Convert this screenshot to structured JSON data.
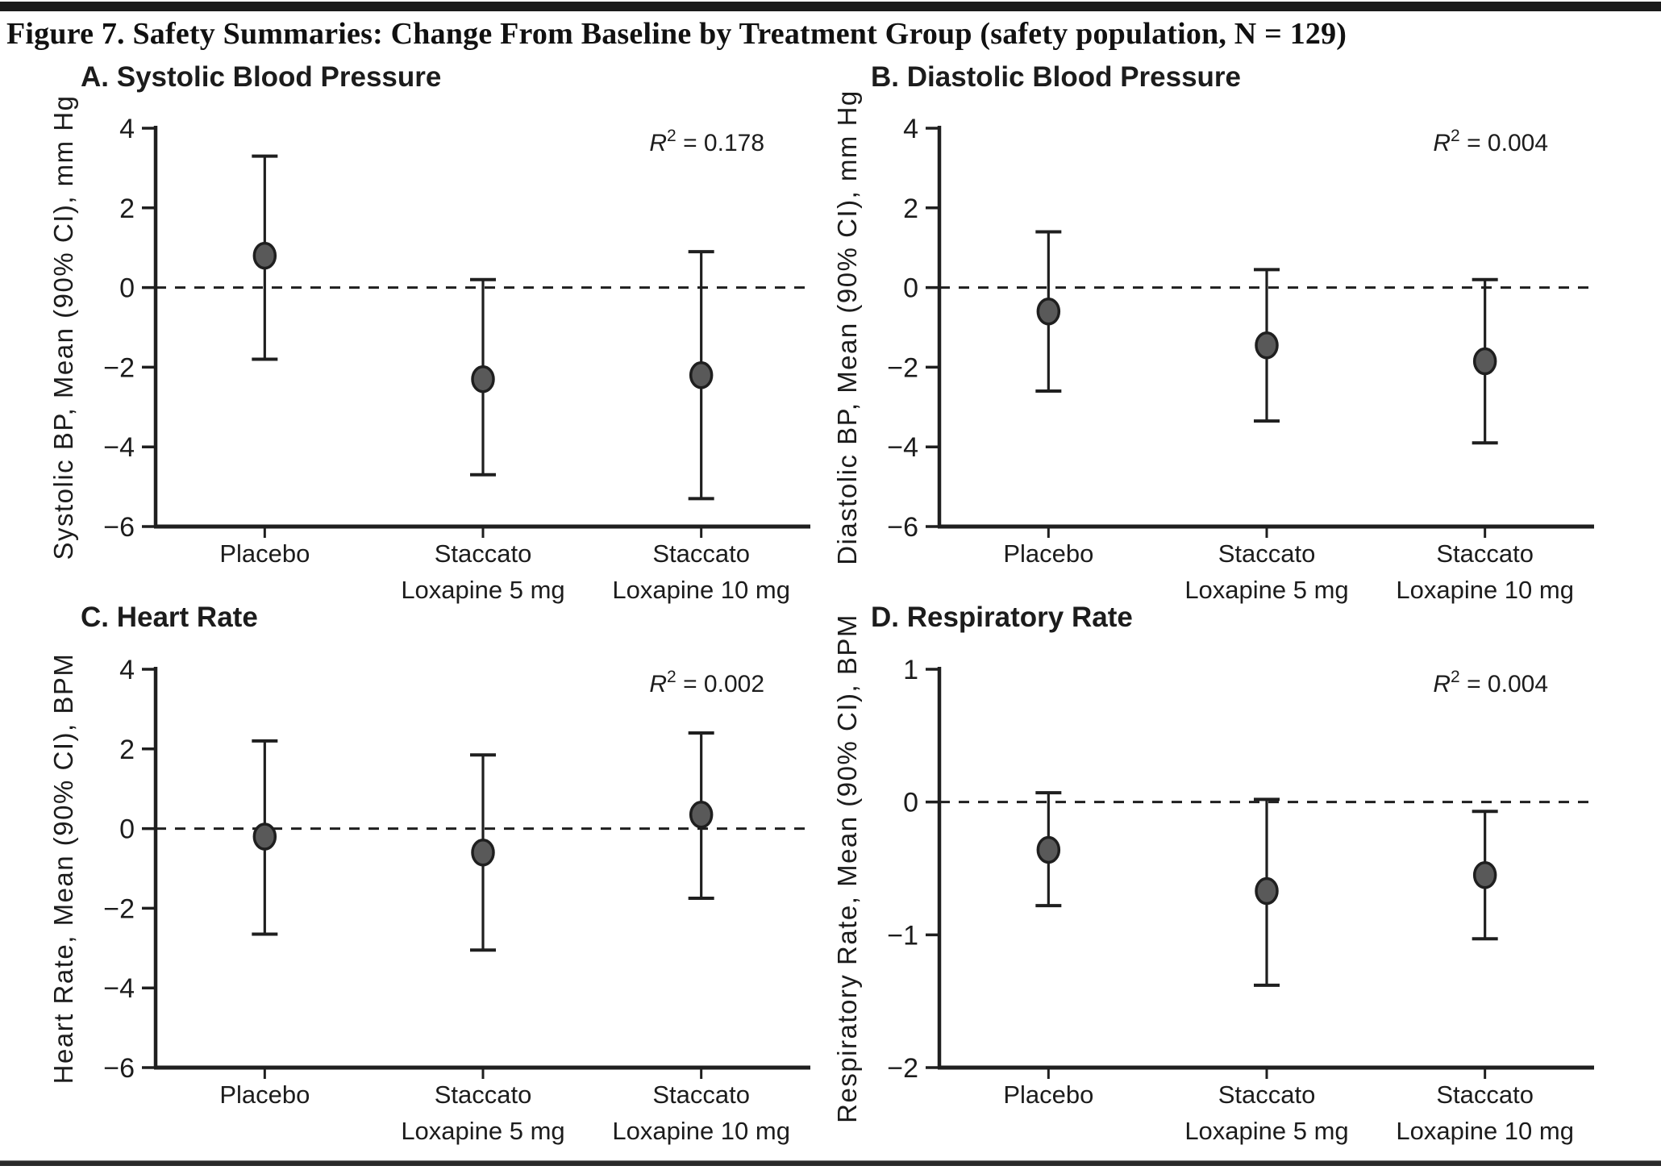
{
  "page": {
    "title": "Figure 7. Safety Summaries: Change From Baseline by Treatment Group (safety population, N = 129)"
  },
  "colors": {
    "top_bar": "#1a1a1a",
    "bottom_rule": "#2a2a2a",
    "marker_fill": "#595959",
    "marker_stroke": "#1f1f1f",
    "axis_line": "#1f1f1f",
    "text": "#1c1c1c"
  },
  "chart_data": [
    {
      "type": "scatter",
      "panel_label": "A. Systolic Blood Pressure",
      "ylabel": "Systolic BP, Mean (90% CI), mm Hg",
      "r_squared_label": "R",
      "r_squared_exp": "2",
      "r_squared_value": " = 0.178",
      "ylim": [
        -6,
        4
      ],
      "yticks": [
        4,
        2,
        0,
        -2,
        -4,
        -6
      ],
      "zero_line": true,
      "legend_position": "none",
      "grid": false,
      "categories": [
        "Placebo",
        "Staccato Loxapine 5 mg",
        "Staccato Loxapine 10 mg"
      ],
      "category_lines": [
        [
          "Placebo"
        ],
        [
          "Staccato",
          "Loxapine 5 mg"
        ],
        [
          "Staccato",
          "Loxapine 10 mg"
        ]
      ],
      "points": [
        {
          "group": "Placebo",
          "mean": 0.8,
          "ci_low": -1.8,
          "ci_high": 3.3
        },
        {
          "group": "Staccato Loxapine 5 mg",
          "mean": -2.3,
          "ci_low": -4.7,
          "ci_high": 0.2
        },
        {
          "group": "Staccato Loxapine 10 mg",
          "mean": -2.2,
          "ci_low": -5.3,
          "ci_high": 0.9
        }
      ]
    },
    {
      "type": "scatter",
      "panel_label": "B. Diastolic Blood Pressure",
      "ylabel": "Diastolic BP, Mean (90% CI), mm Hg",
      "r_squared_label": "R",
      "r_squared_exp": "2",
      "r_squared_value": " = 0.004",
      "ylim": [
        -6,
        4
      ],
      "yticks": [
        4,
        2,
        0,
        -2,
        -4,
        -6
      ],
      "zero_line": true,
      "legend_position": "none",
      "grid": false,
      "categories": [
        "Placebo",
        "Staccato Loxapine 5 mg",
        "Staccato Loxapine 10 mg"
      ],
      "category_lines": [
        [
          "Placebo"
        ],
        [
          "Staccato",
          "Loxapine 5 mg"
        ],
        [
          "Staccato",
          "Loxapine 10 mg"
        ]
      ],
      "points": [
        {
          "group": "Placebo",
          "mean": -0.6,
          "ci_low": -2.6,
          "ci_high": 1.4
        },
        {
          "group": "Staccato Loxapine 5 mg",
          "mean": -1.45,
          "ci_low": -3.35,
          "ci_high": 0.45
        },
        {
          "group": "Staccato Loxapine 10 mg",
          "mean": -1.85,
          "ci_low": -3.9,
          "ci_high": 0.2
        }
      ]
    },
    {
      "type": "scatter",
      "panel_label": "C. Heart Rate",
      "ylabel": "Heart Rate, Mean (90% CI), BPM",
      "r_squared_label": "R",
      "r_squared_exp": "2",
      "r_squared_value": " = 0.002",
      "ylim": [
        -6,
        4
      ],
      "yticks": [
        4,
        2,
        0,
        -2,
        -4,
        -6
      ],
      "zero_line": true,
      "legend_position": "none",
      "grid": false,
      "categories": [
        "Placebo",
        "Staccato Loxapine 5 mg",
        "Staccato Loxapine 10 mg"
      ],
      "category_lines": [
        [
          "Placebo"
        ],
        [
          "Staccato",
          "Loxapine 5 mg"
        ],
        [
          "Staccato",
          "Loxapine 10 mg"
        ]
      ],
      "points": [
        {
          "group": "Placebo",
          "mean": -0.2,
          "ci_low": -2.65,
          "ci_high": 2.2
        },
        {
          "group": "Staccato Loxapine 5 mg",
          "mean": -0.6,
          "ci_low": -3.05,
          "ci_high": 1.85
        },
        {
          "group": "Staccato Loxapine 10 mg",
          "mean": 0.35,
          "ci_low": -1.75,
          "ci_high": 2.4
        }
      ]
    },
    {
      "type": "scatter",
      "panel_label": "D. Respiratory Rate",
      "ylabel": "Respiratory Rate, Mean (90% CI), BPM",
      "r_squared_label": "R",
      "r_squared_exp": "2",
      "r_squared_value": " = 0.004",
      "ylim": [
        -2,
        1
      ],
      "yticks": [
        1,
        0,
        -1,
        -2
      ],
      "zero_line": true,
      "legend_position": "none",
      "grid": false,
      "categories": [
        "Placebo",
        "Staccato Loxapine 5 mg",
        "Staccato Loxapine 10 mg"
      ],
      "category_lines": [
        [
          "Placebo"
        ],
        [
          "Staccato",
          "Loxapine 5 mg"
        ],
        [
          "Staccato",
          "Loxapine 10 mg"
        ]
      ],
      "points": [
        {
          "group": "Placebo",
          "mean": -0.36,
          "ci_low": -0.78,
          "ci_high": 0.07
        },
        {
          "group": "Staccato Loxapine 5 mg",
          "mean": -0.67,
          "ci_low": -1.38,
          "ci_high": 0.02
        },
        {
          "group": "Staccato Loxapine 10 mg",
          "mean": -0.55,
          "ci_low": -1.03,
          "ci_high": -0.07
        }
      ]
    }
  ]
}
